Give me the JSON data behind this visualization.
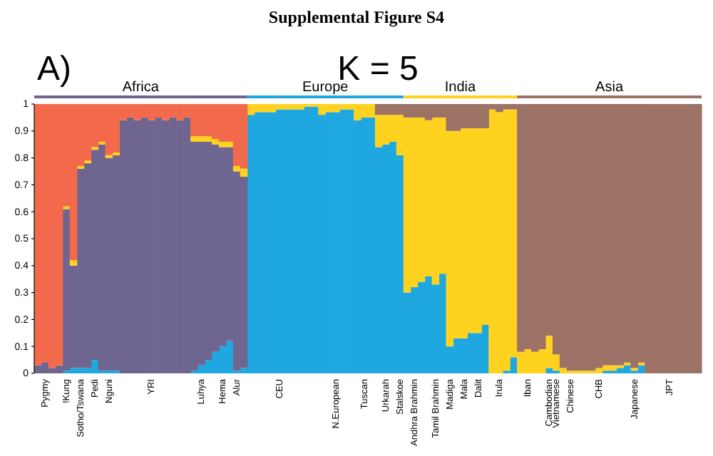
{
  "chart_data": {
    "type": "bar",
    "stacked": true,
    "title": "Supplemental Figure S4",
    "annotations": [
      "A)",
      "K = 5",
      "Africa",
      "Europe",
      "India",
      "Asia"
    ],
    "categories": [
      null,
      "Pygmy",
      null,
      null,
      "!Kung",
      null,
      "Sotho/Tswana",
      null,
      "Pedi",
      null,
      "Nguni",
      null,
      null,
      null,
      null,
      null,
      "YRI",
      null,
      null,
      null,
      null,
      null,
      null,
      "Luhya",
      null,
      null,
      "Hema",
      null,
      "Alur",
      null,
      null,
      null,
      null,
      null,
      "CEU",
      null,
      null,
      null,
      null,
      null,
      null,
      null,
      "N.European",
      null,
      null,
      null,
      "Tuscan",
      null,
      null,
      "Urkarah",
      null,
      "Stalskoe",
      null,
      "Andhra Brahmin",
      null,
      null,
      "Tamil Brahmin",
      null,
      "Madiga",
      null,
      "Mala",
      null,
      "Dalit",
      null,
      null,
      "Irula",
      null,
      null,
      null,
      "Iban",
      null,
      null,
      "Cambodian",
      "Vietnamese",
      null,
      "Chinese",
      null,
      null,
      null,
      "CHB",
      null,
      null,
      null,
      null,
      "Japanese",
      null,
      null,
      null,
      null,
      "JPT",
      null,
      null,
      null,
      null
    ],
    "series": [
      {
        "color": "#1fa8e0",
        "values": [
          0,
          0,
          0,
          0,
          0.01,
          0.02,
          0.02,
          0.02,
          0.05,
          0.01,
          0.01,
          0.01,
          0,
          0,
          0,
          0,
          0,
          0,
          0,
          0,
          0,
          0,
          0.01,
          0.03,
          0.05,
          0.08,
          0.1,
          0.12,
          0.01,
          0.02,
          0.96,
          0.97,
          0.97,
          0.97,
          0.98,
          0.98,
          0.98,
          0.98,
          0.99,
          0.99,
          0.96,
          0.97,
          0.97,
          0.98,
          0.98,
          0.94,
          0.95,
          0.95,
          0.84,
          0.85,
          0.86,
          0.81,
          0.3,
          0.32,
          0.34,
          0.36,
          0.33,
          0.37,
          0.1,
          0.13,
          0.13,
          0.15,
          0.15,
          0.18,
          0,
          0,
          0.01,
          0.06,
          0,
          0,
          0,
          0,
          0.02,
          0.01,
          0,
          0,
          0,
          0,
          0,
          0,
          0.01,
          0.01,
          0.02,
          0.03,
          0.01,
          0.03,
          0,
          0,
          0,
          0,
          0,
          0,
          0,
          0
        ]
      },
      {
        "color": "#6e6590",
        "values": [
          0.03,
          0.04,
          0.02,
          0.03,
          0.6,
          0.38,
          0.74,
          0.76,
          0.78,
          0.84,
          0.79,
          0.8,
          0.94,
          0.95,
          0.94,
          0.95,
          0.94,
          0.95,
          0.94,
          0.95,
          0.94,
          0.95,
          0.85,
          0.83,
          0.81,
          0.77,
          0.74,
          0.72,
          0.74,
          0.71,
          0,
          0,
          0,
          0,
          0,
          0,
          0,
          0,
          0,
          0,
          0,
          0,
          0,
          0,
          0,
          0,
          0,
          0,
          0,
          0,
          0,
          0,
          0,
          0,
          0,
          0,
          0,
          0,
          0,
          0,
          0,
          0,
          0,
          0,
          0,
          0,
          0,
          0,
          0,
          0,
          0,
          0,
          0,
          0,
          0,
          0,
          0,
          0,
          0,
          0,
          0,
          0,
          0,
          0,
          0,
          0,
          0,
          0,
          0,
          0,
          0,
          0,
          0,
          0
        ]
      },
      {
        "color": "#ffd21f",
        "values": [
          0,
          0,
          0,
          0,
          0.01,
          0.02,
          0.01,
          0.01,
          0.01,
          0.01,
          0.01,
          0.01,
          0,
          0,
          0,
          0,
          0,
          0,
          0,
          0,
          0,
          0,
          0.02,
          0.02,
          0.02,
          0.02,
          0.02,
          0.02,
          0.02,
          0.03,
          0.04,
          0.03,
          0.03,
          0.03,
          0.02,
          0.02,
          0.02,
          0.02,
          0.01,
          0.01,
          0.04,
          0.03,
          0.03,
          0.02,
          0.02,
          0.06,
          0.05,
          0.05,
          0.12,
          0.11,
          0.1,
          0.15,
          0.65,
          0.63,
          0.61,
          0.58,
          0.62,
          0.58,
          0.8,
          0.77,
          0.78,
          0.76,
          0.76,
          0.73,
          0.98,
          0.97,
          0.97,
          0.92,
          0.08,
          0.09,
          0.08,
          0.09,
          0.12,
          0.06,
          0.02,
          0.01,
          0.01,
          0.01,
          0.01,
          0.02,
          0.02,
          0.02,
          0.01,
          0.01,
          0.01,
          0.01,
          0,
          0,
          0,
          0,
          0,
          0,
          0,
          0
        ]
      },
      {
        "color": "#9c7266",
        "values": [
          0,
          0,
          0,
          0,
          0,
          0,
          0,
          0,
          0,
          0,
          0,
          0,
          0,
          0,
          0,
          0,
          0,
          0,
          0,
          0,
          0,
          0,
          0,
          0,
          0,
          0,
          0,
          0,
          0,
          0,
          0,
          0,
          0,
          0,
          0,
          0,
          0,
          0,
          0,
          0,
          0,
          0,
          0,
          0,
          0,
          0,
          0,
          0,
          0.04,
          0.04,
          0.04,
          0.04,
          0.05,
          0.05,
          0.05,
          0.06,
          0.05,
          0.05,
          0.1,
          0.1,
          0.09,
          0.09,
          0.09,
          0.09,
          0.02,
          0.03,
          0.02,
          0.02,
          0.92,
          0.91,
          0.92,
          0.91,
          0.86,
          0.93,
          0.98,
          0.99,
          0.99,
          0.99,
          0.99,
          0.98,
          0.97,
          0.97,
          0.97,
          0.96,
          0.98,
          0.96,
          1,
          1,
          1,
          1,
          1,
          1,
          1,
          1
        ]
      },
      {
        "color": "#f26a4b",
        "values": [
          0.97,
          0.96,
          0.98,
          0.97,
          0.38,
          0.58,
          0.23,
          0.21,
          0.16,
          0.14,
          0.19,
          0.18,
          0.06,
          0.05,
          0.06,
          0.05,
          0.06,
          0.05,
          0.06,
          0.05,
          0.06,
          0.05,
          0.12,
          0.12,
          0.12,
          0.13,
          0.14,
          0.14,
          0.23,
          0.24,
          0,
          0,
          0,
          0,
          0,
          0,
          0,
          0,
          0,
          0,
          0,
          0,
          0,
          0,
          0,
          0,
          0,
          0,
          0,
          0,
          0,
          0,
          0,
          0,
          0,
          0,
          0,
          0,
          0,
          0,
          0,
          0,
          0,
          0,
          0,
          0,
          0,
          0,
          0,
          0,
          0,
          0,
          0,
          0,
          0,
          0,
          0,
          0,
          0,
          0,
          0,
          0,
          0,
          0,
          0,
          0,
          0,
          0,
          0,
          0,
          0,
          0,
          0,
          0
        ]
      }
    ],
    "ylim": [
      0,
      1
    ],
    "yticks": [
      0,
      0.1,
      0.2,
      0.3,
      0.4,
      0.5,
      0.6,
      0.7,
      0.8,
      0.9,
      1
    ],
    "grid": false
  }
}
